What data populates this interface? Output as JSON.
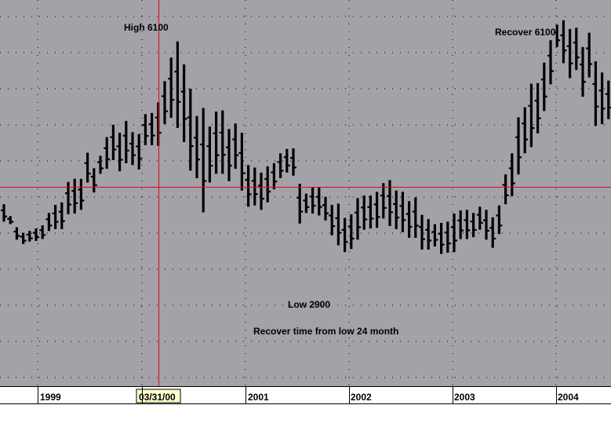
{
  "chart_data": {
    "type": "ohlc-bar",
    "title": "",
    "xlabel": "",
    "ylabel": "",
    "x_ticks": [
      "1999",
      "2001",
      "2002",
      "2003",
      "2004"
    ],
    "crosshair_date_label": "03/31/00",
    "annotations": [
      {
        "id": "high",
        "text": "High 6100"
      },
      {
        "id": "low",
        "text": "Low 2900"
      },
      {
        "id": "recover",
        "text": "Recover 6100"
      },
      {
        "id": "recover-time",
        "text": "Recover time from low 24 month"
      }
    ],
    "grid": true,
    "colors": {
      "plot_background": "#a3a2a8",
      "bars": "#000000",
      "crosshair": "#e8001c",
      "grid_dots": "#1a1a1a"
    },
    "bars": [
      [
        4520,
        4240
      ],
      [
        4330,
        4200
      ],
      [
        4150,
        3950
      ],
      [
        4060,
        3880
      ],
      [
        4090,
        3920
      ],
      [
        4130,
        3930
      ],
      [
        4180,
        3960
      ],
      [
        4380,
        4090
      ],
      [
        4510,
        4120
      ],
      [
        4550,
        4120
      ],
      [
        4880,
        4360
      ],
      [
        4930,
        4370
      ],
      [
        4930,
        4430
      ],
      [
        5350,
        4870
      ],
      [
        5100,
        4710
      ],
      [
        5300,
        5010
      ],
      [
        5600,
        5090
      ],
      [
        5800,
        5230
      ],
      [
        5670,
        5050
      ],
      [
        5860,
        5180
      ],
      [
        5680,
        5150
      ],
      [
        5650,
        5080
      ],
      [
        5970,
        5470
      ],
      [
        5990,
        5470
      ],
      [
        6160,
        5460
      ],
      [
        6500,
        5810
      ],
      [
        6880,
        5910
      ],
      [
        7140,
        5750
      ],
      [
        6770,
        5520
      ],
      [
        6380,
        5060
      ],
      [
        5940,
        4940
      ],
      [
        6070,
        4390
      ],
      [
        5770,
        4870
      ],
      [
        6010,
        5010
      ],
      [
        6030,
        5010
      ],
      [
        5730,
        4890
      ],
      [
        5820,
        5090
      ],
      [
        5670,
        4740
      ],
      [
        5150,
        4480
      ],
      [
        5110,
        4500
      ],
      [
        5030,
        4430
      ],
      [
        5130,
        4550
      ],
      [
        5180,
        4760
      ],
      [
        5340,
        4940
      ],
      [
        5410,
        5030
      ],
      [
        5420,
        4980
      ],
      [
        4850,
        4210
      ],
      [
        4690,
        4380
      ],
      [
        4790,
        4370
      ],
      [
        4800,
        4340
      ],
      [
        4640,
        4260
      ],
      [
        4510,
        4020
      ],
      [
        4530,
        3860
      ],
      [
        4300,
        3750
      ],
      [
        4360,
        3800
      ],
      [
        4620,
        3950
      ],
      [
        4660,
        4110
      ],
      [
        4660,
        4130
      ],
      [
        4720,
        4140
      ],
      [
        4860,
        4290
      ],
      [
        4910,
        4170
      ],
      [
        4740,
        4120
      ],
      [
        4720,
        4070
      ],
      [
        4570,
        3980
      ],
      [
        4630,
        3980
      ],
      [
        4350,
        3790
      ],
      [
        4280,
        3790
      ],
      [
        4200,
        3840
      ],
      [
        4220,
        3720
      ],
      [
        4240,
        3740
      ],
      [
        4370,
        3750
      ],
      [
        4420,
        3960
      ],
      [
        4430,
        3960
      ],
      [
        4380,
        3990
      ],
      [
        4480,
        4110
      ],
      [
        4430,
        3950
      ],
      [
        4310,
        3820
      ],
      [
        4500,
        4040
      ],
      [
        5000,
        4520
      ],
      [
        5340,
        4650
      ],
      [
        5920,
        5000
      ],
      [
        6080,
        5340
      ],
      [
        6460,
        5440
      ],
      [
        6470,
        5660
      ],
      [
        6800,
        6020
      ],
      [
        7160,
        6450
      ],
      [
        7410,
        7050
      ],
      [
        7480,
        6790
      ],
      [
        7340,
        6550
      ],
      [
        7360,
        6680
      ],
      [
        7050,
        6250
      ],
      [
        7280,
        6560
      ],
      [
        6820,
        5780
      ],
      [
        6640,
        5810
      ],
      [
        6510,
        5890
      ]
    ],
    "notes": "bars = [high, low] per period in index points, estimated from the plotted scale; plot has no printed price axis"
  }
}
